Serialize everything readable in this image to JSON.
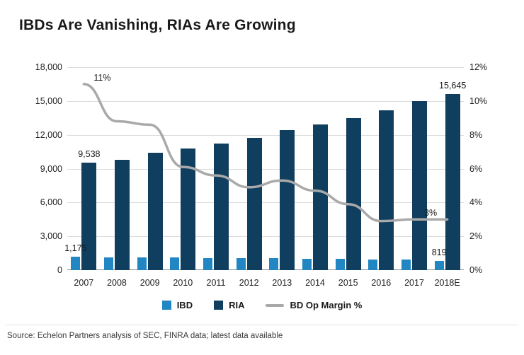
{
  "title": "IBDs Are Vanishing, RIAs Are Growing",
  "source": "Source: Echelon Partners analysis of SEC, FINRA data; latest data available",
  "legend": {
    "ibd": "IBD",
    "ria": "RIA",
    "margin": "BD Op Margin %"
  },
  "colors": {
    "ibd": "#2286c3",
    "ria": "#103e5e",
    "line": "#a9a9a9",
    "grid": "#dcdcdc",
    "text": "#1a1a1a"
  },
  "chart_data": {
    "type": "bar",
    "subtype": "grouped bars with overlaid line (dual axis)",
    "categories": [
      "2007",
      "2008",
      "2009",
      "2010",
      "2011",
      "2012",
      "2013",
      "2014",
      "2015",
      "2016",
      "2017",
      "2018E"
    ],
    "series": [
      {
        "name": "IBD",
        "type": "bar",
        "axis": "left",
        "values": [
          1175,
          1150,
          1130,
          1110,
          1090,
          1060,
          1040,
          1010,
          990,
          960,
          920,
          819
        ]
      },
      {
        "name": "RIA",
        "type": "bar",
        "axis": "left",
        "values": [
          9538,
          9800,
          10400,
          10800,
          11250,
          11700,
          12400,
          12900,
          13500,
          14200,
          15000,
          15645
        ]
      },
      {
        "name": "BD Op Margin %",
        "type": "line",
        "axis": "right",
        "values": [
          11,
          8.8,
          8.6,
          6.1,
          5.6,
          4.9,
          5.3,
          4.7,
          3.9,
          2.9,
          3.0,
          3.0
        ]
      }
    ],
    "left_axis": {
      "min": 0,
      "max": 18000,
      "step": 3000,
      "tick_labels": [
        "0",
        "3,000",
        "6,000",
        "9,000",
        "12,000",
        "15,000",
        "18,000"
      ]
    },
    "right_axis": {
      "min": 0,
      "max": 12,
      "step": 2,
      "tick_labels": [
        "0%",
        "2%",
        "4%",
        "6%",
        "8%",
        "10%",
        "12%"
      ]
    },
    "annotations": [
      {
        "text": "11%",
        "target": "line",
        "index": 0
      },
      {
        "text": "3%",
        "target": "line",
        "index": 10
      },
      {
        "text": "9,538",
        "target": "RIA",
        "index": 0
      },
      {
        "text": "15,645",
        "target": "RIA",
        "index": 11
      },
      {
        "text": "1,175",
        "target": "IBD",
        "index": 0
      },
      {
        "text": "819",
        "target": "IBD",
        "index": 11
      }
    ],
    "grid": true,
    "legend_position": "bottom"
  }
}
